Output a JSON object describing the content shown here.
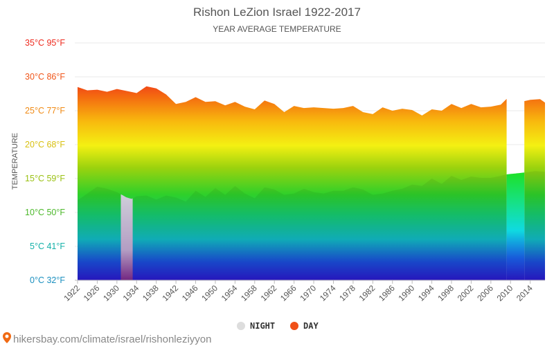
{
  "chart_data": {
    "type": "area",
    "title": "Rishon LeZion Israel 1922-2017",
    "subtitle": "YEAR AVERAGE TEMPERATURE",
    "ylabel": "TEMPERATURE",
    "ylim": [
      0,
      35
    ],
    "y_ticks": [
      {
        "value": 0,
        "label": "0°C 32°F",
        "color": "#1a8fbf"
      },
      {
        "value": 5,
        "label": "5°C 41°F",
        "color": "#13b0a8"
      },
      {
        "value": 10,
        "label": "10°C 50°F",
        "color": "#4cb82a"
      },
      {
        "value": 15,
        "label": "15°C 59°F",
        "color": "#9ac112"
      },
      {
        "value": 20,
        "label": "20°C 68°F",
        "color": "#d8c010"
      },
      {
        "value": 25,
        "label": "25°C 77°F",
        "color": "#f08a14"
      },
      {
        "value": 30,
        "label": "30°C 86°F",
        "color": "#f05418"
      },
      {
        "value": 35,
        "label": "35°C 95°F",
        "color": "#ee2a1e"
      }
    ],
    "x_ticks": [
      "1922",
      "1926",
      "1930",
      "1934",
      "1938",
      "1942",
      "1946",
      "1950",
      "1954",
      "1958",
      "1962",
      "1966",
      "1970",
      "1974",
      "1978",
      "1982",
      "1986",
      "1990",
      "1994",
      "1998",
      "2002",
      "2006",
      "2010",
      "2014"
    ],
    "x_start": 1922,
    "x_end": 2017,
    "series": [
      {
        "name": "NIGHT",
        "color": "#dddddd",
        "values": [
          {
            "x": 1922,
            "y": 11.8
          },
          {
            "x": 1924,
            "y": 12.8
          },
          {
            "x": 1926,
            "y": 13.8
          },
          {
            "x": 1928,
            "y": 13.5
          },
          {
            "x": 1930,
            "y": 13.0
          },
          {
            "x": 1931,
            "y": 12.6
          },
          {
            "x": 1932,
            "y": 12.2
          },
          {
            "x": 1933,
            "y": 12.0
          },
          {
            "x": 1934,
            "y": 12.4
          },
          {
            "x": 1936,
            "y": 12.5
          },
          {
            "x": 1938,
            "y": 11.9
          },
          {
            "x": 1940,
            "y": 12.5
          },
          {
            "x": 1942,
            "y": 12.2
          },
          {
            "x": 1944,
            "y": 11.6
          },
          {
            "x": 1946,
            "y": 13.2
          },
          {
            "x": 1948,
            "y": 12.3
          },
          {
            "x": 1950,
            "y": 13.6
          },
          {
            "x": 1952,
            "y": 12.6
          },
          {
            "x": 1954,
            "y": 13.9
          },
          {
            "x": 1956,
            "y": 12.8
          },
          {
            "x": 1958,
            "y": 12.1
          },
          {
            "x": 1960,
            "y": 13.7
          },
          {
            "x": 1962,
            "y": 13.4
          },
          {
            "x": 1964,
            "y": 12.6
          },
          {
            "x": 1966,
            "y": 12.8
          },
          {
            "x": 1968,
            "y": 13.5
          },
          {
            "x": 1970,
            "y": 13.0
          },
          {
            "x": 1972,
            "y": 12.8
          },
          {
            "x": 1974,
            "y": 13.2
          },
          {
            "x": 1976,
            "y": 13.2
          },
          {
            "x": 1978,
            "y": 13.7
          },
          {
            "x": 1980,
            "y": 13.4
          },
          {
            "x": 1982,
            "y": 12.6
          },
          {
            "x": 1984,
            "y": 12.8
          },
          {
            "x": 1986,
            "y": 13.2
          },
          {
            "x": 1988,
            "y": 13.5
          },
          {
            "x": 1990,
            "y": 14.1
          },
          {
            "x": 1992,
            "y": 13.9
          },
          {
            "x": 1994,
            "y": 15.0
          },
          {
            "x": 1996,
            "y": 14.2
          },
          {
            "x": 1998,
            "y": 15.4
          },
          {
            "x": 2000,
            "y": 14.8
          },
          {
            "x": 2002,
            "y": 15.3
          },
          {
            "x": 2004,
            "y": 15.1
          },
          {
            "x": 2006,
            "y": 15.1
          },
          {
            "x": 2008,
            "y": 15.4
          },
          {
            "x": 2009,
            "y": 15.6
          },
          {
            "x": 2013,
            "y": 15.9
          },
          {
            "x": 2015,
            "y": 16.1
          },
          {
            "x": 2017,
            "y": 16.0
          }
        ]
      },
      {
        "name": "DAY",
        "color": "#f05018",
        "values": [
          {
            "x": 1922,
            "y": 28.5
          },
          {
            "x": 1924,
            "y": 28.0
          },
          {
            "x": 1926,
            "y": 28.1
          },
          {
            "x": 1928,
            "y": 27.8
          },
          {
            "x": 1930,
            "y": 28.2
          },
          {
            "x": 1934,
            "y": 27.6
          },
          {
            "x": 1936,
            "y": 28.6
          },
          {
            "x": 1938,
            "y": 28.3
          },
          {
            "x": 1940,
            "y": 27.4
          },
          {
            "x": 1942,
            "y": 26.0
          },
          {
            "x": 1944,
            "y": 26.3
          },
          {
            "x": 1946,
            "y": 27.0
          },
          {
            "x": 1948,
            "y": 26.3
          },
          {
            "x": 1950,
            "y": 26.4
          },
          {
            "x": 1952,
            "y": 25.8
          },
          {
            "x": 1954,
            "y": 26.3
          },
          {
            "x": 1956,
            "y": 25.6
          },
          {
            "x": 1958,
            "y": 25.2
          },
          {
            "x": 1960,
            "y": 26.5
          },
          {
            "x": 1962,
            "y": 26.0
          },
          {
            "x": 1964,
            "y": 24.8
          },
          {
            "x": 1966,
            "y": 25.7
          },
          {
            "x": 1968,
            "y": 25.4
          },
          {
            "x": 1970,
            "y": 25.5
          },
          {
            "x": 1972,
            "y": 25.4
          },
          {
            "x": 1974,
            "y": 25.3
          },
          {
            "x": 1976,
            "y": 25.4
          },
          {
            "x": 1978,
            "y": 25.7
          },
          {
            "x": 1980,
            "y": 24.8
          },
          {
            "x": 1982,
            "y": 24.5
          },
          {
            "x": 1984,
            "y": 25.5
          },
          {
            "x": 1986,
            "y": 25.0
          },
          {
            "x": 1988,
            "y": 25.3
          },
          {
            "x": 1990,
            "y": 25.1
          },
          {
            "x": 1992,
            "y": 24.3
          },
          {
            "x": 1994,
            "y": 25.2
          },
          {
            "x": 1996,
            "y": 25.0
          },
          {
            "x": 1998,
            "y": 26.0
          },
          {
            "x": 2000,
            "y": 25.4
          },
          {
            "x": 2002,
            "y": 26.0
          },
          {
            "x": 2004,
            "y": 25.5
          },
          {
            "x": 2006,
            "y": 25.6
          },
          {
            "x": 2008,
            "y": 25.9
          },
          {
            "x": 2010,
            "y": 27.3
          },
          {
            "x": 2012,
            "y": 26.3
          },
          {
            "x": 2014,
            "y": 26.6
          },
          {
            "x": 2016,
            "y": 26.7
          },
          {
            "x": 2017,
            "y": 26.2
          }
        ]
      }
    ],
    "gaps": [
      [
        1930.8,
        1933.2
      ],
      [
        2009.2,
        2012.8
      ]
    ],
    "legend": [
      {
        "name": "NIGHT",
        "color": "#dddddd"
      },
      {
        "name": "DAY",
        "color": "#f05018"
      }
    ],
    "legend_position": "bottom-center",
    "grid": true
  },
  "footer": {
    "source_text": "hikersbay.com/climate/israel/rishonleziyyon",
    "pin_icon": "location-pin-icon"
  }
}
